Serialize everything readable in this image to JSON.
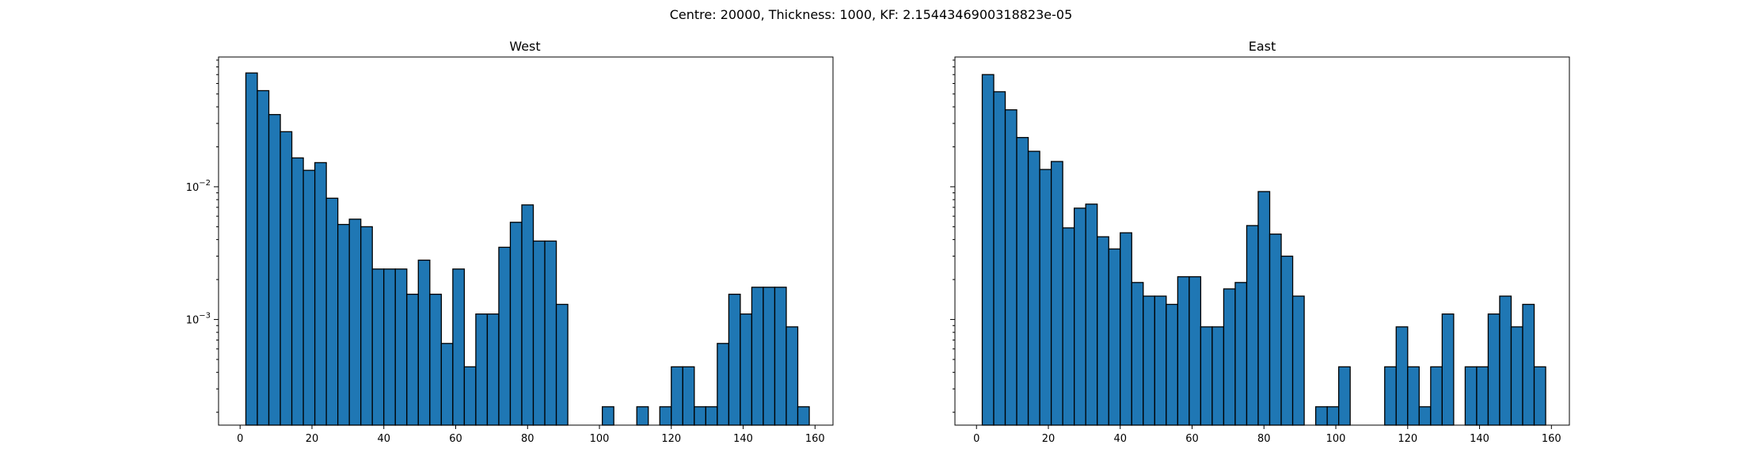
{
  "figure": {
    "suptitle": "Centre: 20000, Thickness: 1000, KF: 2.1544346900318823e-05"
  },
  "chart_data": [
    {
      "type": "bar",
      "title": "West",
      "xlabel": "",
      "ylabel": "",
      "yscale": "log",
      "xlim": [
        -6,
        165
      ],
      "ylim": [
        0.00016,
        0.095
      ],
      "xticks": [
        0,
        20,
        40,
        60,
        80,
        100,
        120,
        140,
        160
      ],
      "yticks": [
        {
          "value": 0.01,
          "label_base": "10",
          "label_exp": "−2"
        },
        {
          "value": 0.001,
          "label_base": "10",
          "label_exp": "−3"
        }
      ],
      "bin_width": 3.2,
      "bin_start": 1.6,
      "bar_color": "#1f77b4",
      "values": [
        0.072,
        0.053,
        0.035,
        0.026,
        0.0165,
        0.0133,
        0.0152,
        0.0082,
        0.0052,
        0.0057,
        0.005,
        0.0024,
        0.0024,
        0.0024,
        0.00155,
        0.0028,
        0.00155,
        0.00066,
        0.0024,
        0.00044,
        0.0011,
        0.0011,
        0.0035,
        0.0054,
        0.0073,
        0.0039,
        0.0039,
        0.0013,
        0,
        0,
        0,
        0.00022,
        0,
        0,
        0.00022,
        0,
        0.00022,
        0.00044,
        0.00044,
        0.00022,
        0.00022,
        0.00066,
        0.00155,
        0.0011,
        0.00175,
        0.00175,
        0.00175,
        0.00088,
        0.00022
      ]
    },
    {
      "type": "bar",
      "title": "East",
      "xlabel": "",
      "ylabel": "",
      "yscale": "log",
      "xlim": [
        -6,
        165
      ],
      "ylim": [
        0.00016,
        0.095
      ],
      "xticks": [
        0,
        20,
        40,
        60,
        80,
        100,
        120,
        140,
        160
      ],
      "yticks": [],
      "bin_width": 3.2,
      "bin_start": 1.6,
      "bar_color": "#1f77b4",
      "values": [
        0.07,
        0.052,
        0.038,
        0.0235,
        0.0185,
        0.0135,
        0.0155,
        0.0049,
        0.0069,
        0.0074,
        0.0042,
        0.0034,
        0.0045,
        0.0019,
        0.0015,
        0.0015,
        0.0013,
        0.0021,
        0.0021,
        0.00088,
        0.00088,
        0.0017,
        0.0019,
        0.0051,
        0.0092,
        0.0044,
        0.003,
        0.0015,
        0,
        0.00022,
        0.00022,
        0.00044,
        0,
        0,
        0,
        0.00044,
        0.00088,
        0.00044,
        0.00022,
        0.00044,
        0.0011,
        0,
        0.00044,
        0.00044,
        0.0011,
        0.0015,
        0.00088,
        0.0013,
        0.00044
      ]
    }
  ]
}
